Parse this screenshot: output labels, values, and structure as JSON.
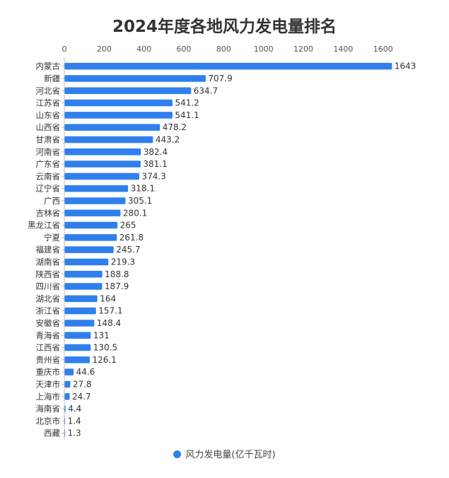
{
  "chart_data": {
    "type": "bar",
    "orientation": "horizontal",
    "title": "2024年度各地风力发电量排名",
    "categories": [
      "内蒙古",
      "新疆",
      "河北省",
      "江苏省",
      "山东省",
      "山西省",
      "甘肃省",
      "河南省",
      "广东省",
      "云南省",
      "辽宁省",
      "广西",
      "吉林省",
      "黑龙江省",
      "宁夏",
      "福建省",
      "湖南省",
      "陕西省",
      "四川省",
      "湖北省",
      "浙江省",
      "安徽省",
      "青海省",
      "江西省",
      "贵州省",
      "重庆市",
      "天津市",
      "上海市",
      "海南省",
      "北京市",
      "西藏"
    ],
    "value_labels": [
      "1643",
      "707.9",
      "634.7",
      "541.2",
      "541.1",
      "478.2",
      "443.2",
      "382.4",
      "381.1",
      "374.3",
      "318.1",
      "305.1",
      "280.1",
      "265",
      "261.8",
      "245.7",
      "219.3",
      "188.8",
      "187.9",
      "164",
      "157.1",
      "148.4",
      "131",
      "130.5",
      "126.1",
      "44.6",
      "27.8",
      "24.7",
      "4.4",
      "1.4",
      "1.3"
    ],
    "series": [
      {
        "name": "风力发电量(亿千瓦时)",
        "values": [
          1643,
          707.9,
          634.7,
          541.2,
          541.1,
          478.2,
          443.2,
          382.4,
          381.1,
          374.3,
          318.1,
          305.1,
          280.1,
          265,
          261.8,
          245.7,
          219.3,
          188.8,
          187.9,
          164,
          157.1,
          148.4,
          131,
          130.5,
          126.1,
          44.6,
          27.8,
          24.7,
          4.4,
          1.4,
          1.3
        ],
        "color": "#2f80ed"
      }
    ],
    "xlim": [
      0,
      1700
    ],
    "xticks": [
      "0",
      "200",
      "400",
      "600",
      "800",
      "1000",
      "1200",
      "1400",
      "1600"
    ],
    "xtick_values": [
      0,
      200,
      400,
      600,
      800,
      1000,
      1200,
      1400,
      1600
    ],
    "axis_position": "top",
    "legend_position": "bottom-center",
    "grid": false
  },
  "legend": {
    "label": "风力发电量(亿千瓦时)"
  },
  "colors": {
    "bar": "#2f80ed",
    "axis": "#bbbbbb",
    "text": "#333333"
  }
}
